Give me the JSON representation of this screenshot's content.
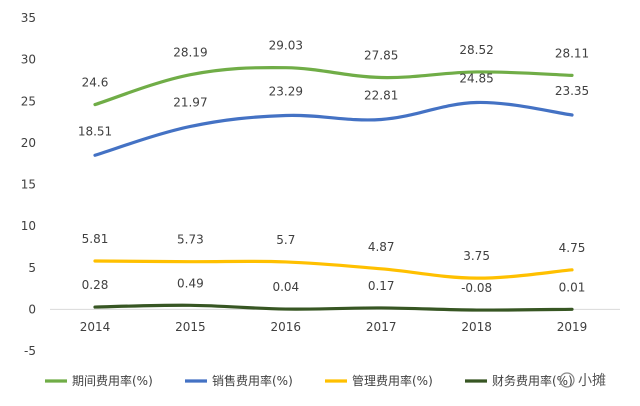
{
  "chart_data": {
    "type": "line",
    "categories": [
      "2014",
      "2015",
      "2016",
      "2017",
      "2018",
      "2019"
    ],
    "ylim": [
      -5,
      35
    ],
    "yticks": [
      -5,
      0,
      5,
      10,
      15,
      20,
      25,
      30,
      35
    ],
    "grid": false,
    "legend_position": "bottom",
    "series": [
      {
        "name": "期间费用率(%)",
        "color": "#70ad47",
        "values": [
          24.6,
          28.19,
          29.03,
          27.85,
          28.52,
          28.11
        ],
        "labels": [
          "24.6",
          "28.19",
          "29.03",
          "27.85",
          "28.52",
          "28.11"
        ]
      },
      {
        "name": "销售费用率(%)",
        "color": "#4472c4",
        "values": [
          18.51,
          21.97,
          23.29,
          22.81,
          24.85,
          23.35
        ],
        "labels": [
          "18.51",
          "21.97",
          "23.29",
          "22.81",
          "24.85",
          "23.35"
        ]
      },
      {
        "name": "管理费用率(%)",
        "color": "#ffc000",
        "values": [
          5.81,
          5.73,
          5.7,
          4.87,
          3.75,
          4.75
        ],
        "labels": [
          "5.81",
          "5.73",
          "5.7",
          "4.87",
          "3.75",
          "4.75"
        ]
      },
      {
        "name": "财务费用率(%)",
        "color": "#375623",
        "values": [
          0.28,
          0.49,
          0.04,
          0.17,
          -0.08,
          0.01
        ],
        "labels": [
          "0.28",
          "0.49",
          "0.04",
          "0.17",
          "-0.08",
          "0.01"
        ]
      }
    ]
  },
  "watermark": {
    "text": "小摊"
  }
}
